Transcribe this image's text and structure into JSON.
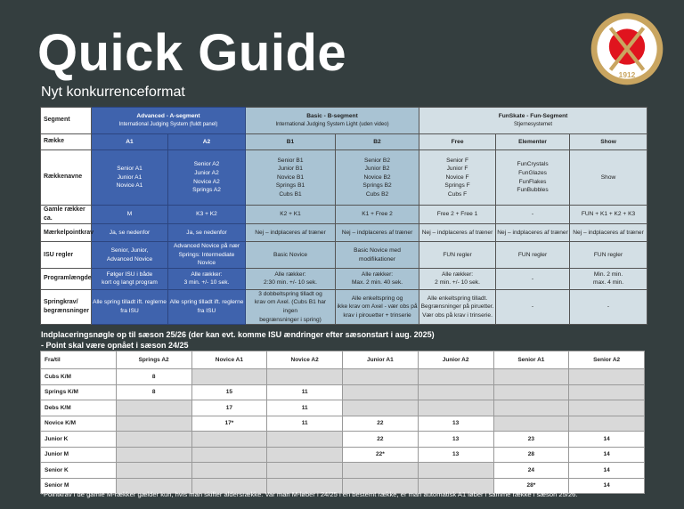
{
  "title": "Quick Guide",
  "subtitle": "Nyt konkurrenceformat",
  "logo": {
    "text": "DANSK SKØJTE UNION 1912",
    "colors": {
      "ring": "#c9a560",
      "center": "#e0141e"
    }
  },
  "colors": {
    "bg": "#343e3f",
    "a_segment": "#3f63ad",
    "b_segment": "#a9c3d3",
    "fun_segment": "#d3dfe5",
    "empty_cell": "#d9d9d9"
  },
  "overview": {
    "segment_label": "Segment",
    "segments": [
      {
        "title": "Advanced -  A-segment",
        "sub": "International Judging System (fuldt panel)",
        "cls": "a",
        "span": 2
      },
      {
        "title": "Basic - B-segment",
        "sub": "International Judging System Light (uden video)",
        "cls": "b",
        "span": 2
      },
      {
        "title": "FunSkate - Fun-Segment",
        "sub": "Stjernesystemet",
        "cls": "f",
        "span": 3
      }
    ],
    "col_classes": [
      "a",
      "a",
      "b",
      "b",
      "f",
      "f",
      "f"
    ],
    "rows": [
      {
        "label": "Række",
        "cells": [
          "A1",
          "A2",
          "B1",
          "B2",
          "Free",
          "Elementer",
          "Show"
        ],
        "bold": true
      },
      {
        "label": "Rækkenavne",
        "cells": [
          "Senior A1\nJunior A1\nNovice A1",
          "Senior A2\nJunior A2\nNovice A2\nSprings A2",
          "Senior B1\nJunior B1\nNovice B1\nSprings B1\nCubs B1",
          "Senior B2\nJunior B2\nNovice B2\nSprings B2\nCubs B2",
          "Senior F\nJunior F\nNovice F\nSprings F\nCubs F",
          "FunCrystals\nFunGlazes\nFunFlakes\nFunBubbles",
          "Show"
        ]
      },
      {
        "label": "Gamle rækker ca.",
        "cells": [
          "M",
          "K3 + K2",
          "K2 + K1",
          "K1 + Free 2",
          "Free 2 + Free 1",
          "-",
          "FUN + K1 + K2 + K3"
        ]
      },
      {
        "label": "Mærkelpointkrav",
        "cells": [
          "Ja, se nedenfor",
          "Ja, se nedenfor",
          "Nej – indplaceres af træner",
          "Nej – indplaceres af træner",
          "Nej – indplaceres af træner",
          "Nej – indplaceres af træner",
          "Nej – indplaceres af træner"
        ]
      },
      {
        "label": "ISU regler",
        "cells": [
          "Senior, Junior,\nAdvanced Novice",
          "Advanced Novice på nær\nSprings: Intermediate Novice",
          "Basic Novice",
          "Basic Novice med modifikationer",
          "FUN regler",
          "FUN regler",
          "FUN regler"
        ]
      },
      {
        "label": "Programlængde",
        "cells": [
          "Følger ISU i både\nkort og langt program",
          "Alle rækker:\n3 min. +/- 10 sek.",
          "Alle rækker:\n2:30 min. +/- 10 sek.",
          "Alle rækker:\nMax. 2 min. 40 sek.",
          "Alle rækker:\n2 min. +/- 10 sek.",
          "-",
          "Min. 2 min.\nmax. 4 min."
        ]
      },
      {
        "label": "Springkrav/\nbegrænsninger",
        "cells": [
          "Alle spring tilladt ift. reglerne\nfra ISU",
          "Alle spring tilladt ift. reglerne\nfra ISU",
          "3 dobbeltspring tilladt og\nkrav om Axel. (Cubs B1 har ingen\nbegrænsninger i spring)",
          "Alle enkeltspring og\nikke krav om Axel - vær obs på\nkrav i pirouetter + trinserie",
          "Alle enkeltspring tilladt.\nBegrænsninger på piruetter.\nVær obs på krav i trinserie.",
          "-",
          "-"
        ]
      }
    ]
  },
  "placement": {
    "heading": "Indplaceringsnøgle op til sæson 25/26 (der kan evt. komme ISU ændringer efter sæsonstart i aug. 2025)",
    "heading2": "- Point skal være opnået i sæson 24/25",
    "corner": "Fra/til",
    "columns": [
      "Springs A2",
      "Novice A1",
      "Novice A2",
      "Junior A1",
      "Junior A2",
      "Senior A1",
      "Senior A2"
    ],
    "rows": [
      {
        "label": "Cubs K/M",
        "cells": [
          "8",
          null,
          null,
          null,
          null,
          null,
          null
        ]
      },
      {
        "label": "Springs K/M",
        "cells": [
          "8",
          "15",
          "11",
          null,
          null,
          null,
          null
        ]
      },
      {
        "label": "Debs K/M",
        "cells": [
          null,
          "17",
          "11",
          null,
          null,
          null,
          null
        ]
      },
      {
        "label": "Novice K/M",
        "cells": [
          null,
          "17*",
          "11",
          "22",
          "13",
          null,
          null
        ]
      },
      {
        "label": "Junior K",
        "cells": [
          null,
          null,
          null,
          "22",
          "13",
          "23",
          "14"
        ]
      },
      {
        "label": "Junior M",
        "cells": [
          null,
          null,
          null,
          "22*",
          "13",
          "28",
          "14"
        ]
      },
      {
        "label": "Senior K",
        "cells": [
          null,
          null,
          null,
          null,
          null,
          "24",
          "14"
        ]
      },
      {
        "label": "Senior M",
        "cells": [
          null,
          null,
          null,
          null,
          null,
          "28*",
          "14"
        ]
      }
    ],
    "footnote": "*Pointkrav i de gamle M-rækker gælder kun, hvis man skifter aldersrække. Var man M-løber i 24/25 i en bestemt række, er man automatisk A1 løber i samme række i sæson 25/26."
  }
}
